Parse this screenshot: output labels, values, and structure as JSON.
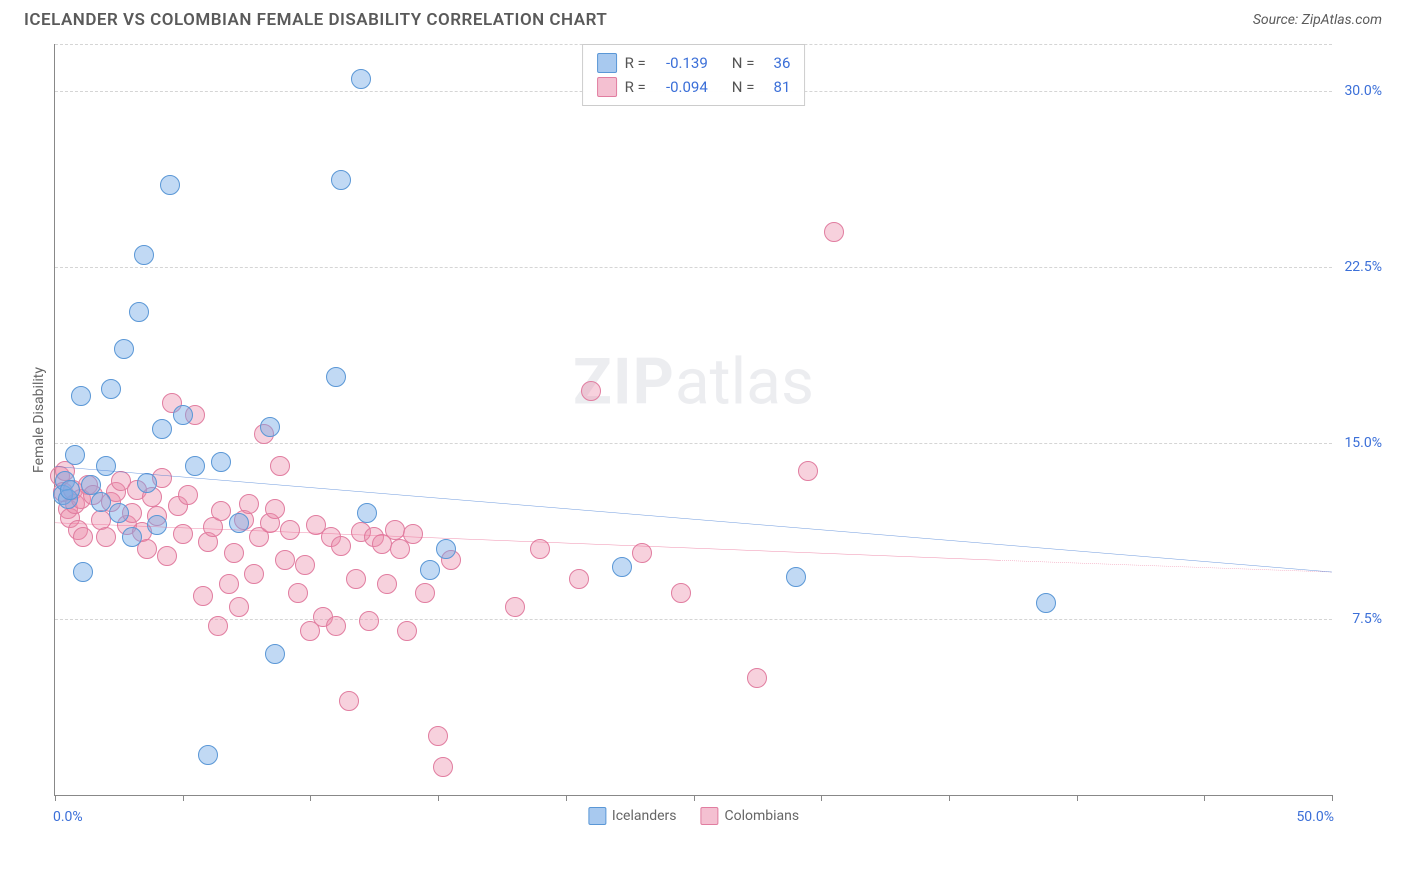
{
  "header": {
    "title": "ICELANDER VS COLOMBIAN FEMALE DISABILITY CORRELATION CHART",
    "source": "Source: ZipAtlas.com"
  },
  "watermark": {
    "zip": "ZIP",
    "atlas": "atlas"
  },
  "chart": {
    "type": "scatter",
    "y_axis_title": "Female Disability",
    "xlim": [
      0,
      50
    ],
    "ylim": [
      0,
      32
    ],
    "x_ticks": [
      0,
      5,
      10,
      15,
      20,
      25,
      30,
      35,
      40,
      45,
      50
    ],
    "x_edge_labels": {
      "min": "0.0%",
      "max": "50.0%"
    },
    "y_grid": [
      {
        "v": 7.5,
        "label": "7.5%"
      },
      {
        "v": 15.0,
        "label": "15.0%"
      },
      {
        "v": 22.5,
        "label": "22.5%"
      },
      {
        "v": 30.0,
        "label": "30.0%"
      },
      {
        "v": 32.0,
        "label": null
      }
    ],
    "grid_color": "#d5d5d5",
    "background_color": "#ffffff",
    "series": {
      "icelanders": {
        "label": "Icelanders",
        "fill": "rgba(118,170,230,0.45)",
        "stroke": "#5a97d6",
        "swatch_fill": "#a8c9ef",
        "swatch_border": "#5a97d6",
        "trend": {
          "color": "#2f6fd0",
          "x1": 0,
          "y1": 14.0,
          "x2": 50,
          "y2": 9.5
        },
        "bubble_radius": 10,
        "points": [
          [
            0.3,
            12.8
          ],
          [
            0.4,
            13.4
          ],
          [
            0.5,
            12.6
          ],
          [
            0.6,
            13.0
          ],
          [
            0.8,
            14.5
          ],
          [
            1.0,
            17.0
          ],
          [
            1.1,
            9.5
          ],
          [
            1.4,
            13.2
          ],
          [
            1.8,
            12.5
          ],
          [
            2.0,
            14.0
          ],
          [
            2.2,
            17.3
          ],
          [
            2.5,
            12.0
          ],
          [
            2.7,
            19.0
          ],
          [
            3.0,
            11.0
          ],
          [
            3.3,
            20.6
          ],
          [
            3.5,
            23.0
          ],
          [
            3.6,
            13.3
          ],
          [
            4.0,
            11.5
          ],
          [
            4.2,
            15.6
          ],
          [
            4.5,
            26.0
          ],
          [
            5.0,
            16.2
          ],
          [
            5.5,
            14.0
          ],
          [
            6.0,
            1.7
          ],
          [
            6.5,
            14.2
          ],
          [
            7.2,
            11.6
          ],
          [
            8.4,
            15.7
          ],
          [
            8.6,
            6.0
          ],
          [
            11.0,
            17.8
          ],
          [
            11.2,
            26.2
          ],
          [
            12.0,
            30.5
          ],
          [
            12.2,
            12.0
          ],
          [
            14.7,
            9.6
          ],
          [
            15.3,
            10.5
          ],
          [
            22.2,
            9.7
          ],
          [
            29.0,
            9.3
          ],
          [
            38.8,
            8.2
          ]
        ]
      },
      "colombians": {
        "label": "Colombians",
        "fill": "rgba(236,140,170,0.40)",
        "stroke": "#e17da0",
        "swatch_fill": "#f4c0d1",
        "swatch_border": "#e17da0",
        "trend": {
          "color": "#e85d8a",
          "x1": 0,
          "y1": 11.6,
          "x2": 37,
          "y2": 10.0,
          "dash_to_x": 50,
          "dash_to_y": 9.5
        },
        "bubble_radius": 10,
        "points": [
          [
            0.2,
            13.6
          ],
          [
            0.3,
            12.9
          ],
          [
            0.4,
            13.8
          ],
          [
            0.5,
            12.2
          ],
          [
            0.6,
            11.8
          ],
          [
            0.7,
            13.0
          ],
          [
            0.8,
            12.4
          ],
          [
            0.9,
            11.3
          ],
          [
            1.0,
            12.6
          ],
          [
            1.1,
            11.0
          ],
          [
            1.3,
            13.2
          ],
          [
            1.5,
            12.8
          ],
          [
            1.8,
            11.7
          ],
          [
            2.0,
            11.0
          ],
          [
            2.2,
            12.5
          ],
          [
            2.4,
            12.9
          ],
          [
            2.6,
            13.4
          ],
          [
            2.8,
            11.5
          ],
          [
            3.0,
            12.0
          ],
          [
            3.2,
            13.0
          ],
          [
            3.4,
            11.2
          ],
          [
            3.6,
            10.5
          ],
          [
            3.8,
            12.7
          ],
          [
            4.0,
            11.9
          ],
          [
            4.2,
            13.5
          ],
          [
            4.4,
            10.2
          ],
          [
            4.6,
            16.7
          ],
          [
            4.8,
            12.3
          ],
          [
            5.0,
            11.1
          ],
          [
            5.2,
            12.8
          ],
          [
            5.5,
            16.2
          ],
          [
            5.8,
            8.5
          ],
          [
            6.0,
            10.8
          ],
          [
            6.2,
            11.4
          ],
          [
            6.4,
            7.2
          ],
          [
            6.5,
            12.1
          ],
          [
            6.8,
            9.0
          ],
          [
            7.0,
            10.3
          ],
          [
            7.2,
            8.0
          ],
          [
            7.4,
            11.7
          ],
          [
            7.6,
            12.4
          ],
          [
            7.8,
            9.4
          ],
          [
            8.0,
            11.0
          ],
          [
            8.2,
            15.4
          ],
          [
            8.4,
            11.6
          ],
          [
            8.6,
            12.2
          ],
          [
            8.8,
            14.0
          ],
          [
            9.0,
            10.0
          ],
          [
            9.2,
            11.3
          ],
          [
            9.5,
            8.6
          ],
          [
            9.8,
            9.8
          ],
          [
            10.0,
            7.0
          ],
          [
            10.2,
            11.5
          ],
          [
            10.5,
            7.6
          ],
          [
            10.8,
            11.0
          ],
          [
            11.0,
            7.2
          ],
          [
            11.2,
            10.6
          ],
          [
            11.5,
            4.0
          ],
          [
            11.8,
            9.2
          ],
          [
            12.0,
            11.2
          ],
          [
            12.3,
            7.4
          ],
          [
            12.5,
            11.0
          ],
          [
            12.8,
            10.7
          ],
          [
            13.0,
            9.0
          ],
          [
            13.3,
            11.3
          ],
          [
            13.5,
            10.5
          ],
          [
            13.8,
            7.0
          ],
          [
            14.0,
            11.1
          ],
          [
            14.5,
            8.6
          ],
          [
            15.0,
            2.5
          ],
          [
            15.2,
            1.2
          ],
          [
            15.5,
            10.0
          ],
          [
            18.0,
            8.0
          ],
          [
            19.0,
            10.5
          ],
          [
            20.5,
            9.2
          ],
          [
            21.0,
            17.2
          ],
          [
            23.0,
            10.3
          ],
          [
            24.5,
            8.6
          ],
          [
            27.5,
            5.0
          ],
          [
            29.5,
            13.8
          ],
          [
            30.5,
            24.0
          ]
        ]
      }
    },
    "stats": [
      {
        "series": "icelanders",
        "R_label": "R =",
        "R": "-0.139",
        "N_label": "N =",
        "N": "36"
      },
      {
        "series": "colombians",
        "R_label": "R =",
        "R": "-0.094",
        "N_label": "N =",
        "N": "81"
      }
    ]
  }
}
